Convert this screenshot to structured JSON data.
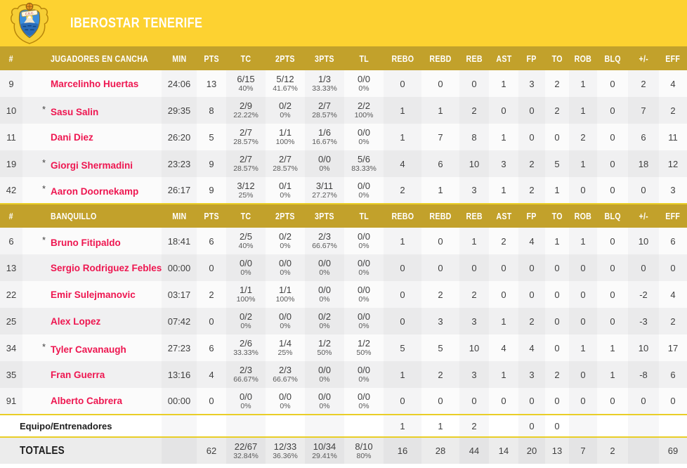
{
  "team": {
    "name": "IBEROSTAR TENERIFE"
  },
  "colors": {
    "banner_yellow": "#FDD231",
    "header_gold": "#C2A12B",
    "player_name_pink": "#EE1650",
    "separator_yellow": "#E9CE27",
    "text_ink": "#3F3F3F"
  },
  "logo": {
    "name": "cb-canarias-crest",
    "ribbon_text": "C.B.C."
  },
  "table": {
    "columns": [
      "#",
      "JUGADORES EN CANCHA",
      "MIN",
      "PTS",
      "TC",
      "2PTS",
      "3PTS",
      "TL",
      "REBO",
      "REBD",
      "REB",
      "AST",
      "FP",
      "TO",
      "ROB",
      "BLQ",
      "+/-",
      "EFF"
    ],
    "sections": [
      {
        "label": "JUGADORES EN CANCHA",
        "players": [
          {
            "num": "9",
            "starter": false,
            "name": "Marcelinho Huertas",
            "min": "24:06",
            "pts": "13",
            "tc": [
              "6/15",
              "40%"
            ],
            "p2": [
              "5/12",
              "41.67%"
            ],
            "p3": [
              "1/3",
              "33.33%"
            ],
            "tl": [
              "0/0",
              "0%"
            ],
            "rebo": "0",
            "rebd": "0",
            "reb": "0",
            "ast": "1",
            "fp": "3",
            "to": "2",
            "rob": "1",
            "blq": "0",
            "pm": "2",
            "eff": "4"
          },
          {
            "num": "10",
            "starter": true,
            "name": "Sasu Salin",
            "min": "29:35",
            "pts": "8",
            "tc": [
              "2/9",
              "22.22%"
            ],
            "p2": [
              "0/2",
              "0%"
            ],
            "p3": [
              "2/7",
              "28.57%"
            ],
            "tl": [
              "2/2",
              "100%"
            ],
            "rebo": "1",
            "rebd": "1",
            "reb": "2",
            "ast": "0",
            "fp": "0",
            "to": "2",
            "rob": "1",
            "blq": "0",
            "pm": "7",
            "eff": "2"
          },
          {
            "num": "11",
            "starter": false,
            "name": "Dani Diez",
            "min": "26:20",
            "pts": "5",
            "tc": [
              "2/7",
              "28.57%"
            ],
            "p2": [
              "1/1",
              "100%"
            ],
            "p3": [
              "1/6",
              "16.67%"
            ],
            "tl": [
              "0/0",
              "0%"
            ],
            "rebo": "1",
            "rebd": "7",
            "reb": "8",
            "ast": "1",
            "fp": "0",
            "to": "0",
            "rob": "2",
            "blq": "0",
            "pm": "6",
            "eff": "11"
          },
          {
            "num": "19",
            "starter": true,
            "name": "Giorgi Shermadini",
            "min": "23:23",
            "pts": "9",
            "tc": [
              "2/7",
              "28.57%"
            ],
            "p2": [
              "2/7",
              "28.57%"
            ],
            "p3": [
              "0/0",
              "0%"
            ],
            "tl": [
              "5/6",
              "83.33%"
            ],
            "rebo": "4",
            "rebd": "6",
            "reb": "10",
            "ast": "3",
            "fp": "2",
            "to": "5",
            "rob": "1",
            "blq": "0",
            "pm": "18",
            "eff": "12"
          },
          {
            "num": "42",
            "starter": true,
            "name": "Aaron Doornekamp",
            "min": "26:17",
            "pts": "9",
            "tc": [
              "3/12",
              "25%"
            ],
            "p2": [
              "0/1",
              "0%"
            ],
            "p3": [
              "3/11",
              "27.27%"
            ],
            "tl": [
              "0/0",
              "0%"
            ],
            "rebo": "2",
            "rebd": "1",
            "reb": "3",
            "ast": "1",
            "fp": "2",
            "to": "1",
            "rob": "0",
            "blq": "0",
            "pm": "0",
            "eff": "3"
          }
        ]
      },
      {
        "label": "BANQUILLO",
        "players": [
          {
            "num": "6",
            "starter": true,
            "name": "Bruno Fitipaldo",
            "min": "18:41",
            "pts": "6",
            "tc": [
              "2/5",
              "40%"
            ],
            "p2": [
              "0/2",
              "0%"
            ],
            "p3": [
              "2/3",
              "66.67%"
            ],
            "tl": [
              "0/0",
              "0%"
            ],
            "rebo": "1",
            "rebd": "0",
            "reb": "1",
            "ast": "2",
            "fp": "4",
            "to": "1",
            "rob": "1",
            "blq": "0",
            "pm": "10",
            "eff": "6"
          },
          {
            "num": "13",
            "starter": false,
            "name": "Sergio Rodriguez Febles",
            "min": "00:00",
            "pts": "0",
            "tc": [
              "0/0",
              "0%"
            ],
            "p2": [
              "0/0",
              "0%"
            ],
            "p3": [
              "0/0",
              "0%"
            ],
            "tl": [
              "0/0",
              "0%"
            ],
            "rebo": "0",
            "rebd": "0",
            "reb": "0",
            "ast": "0",
            "fp": "0",
            "to": "0",
            "rob": "0",
            "blq": "0",
            "pm": "0",
            "eff": "0"
          },
          {
            "num": "22",
            "starter": false,
            "name": "Emir Sulejmanovic",
            "min": "03:17",
            "pts": "2",
            "tc": [
              "1/1",
              "100%"
            ],
            "p2": [
              "1/1",
              "100%"
            ],
            "p3": [
              "0/0",
              "0%"
            ],
            "tl": [
              "0/0",
              "0%"
            ],
            "rebo": "0",
            "rebd": "2",
            "reb": "2",
            "ast": "0",
            "fp": "0",
            "to": "0",
            "rob": "0",
            "blq": "0",
            "pm": "-2",
            "eff": "4"
          },
          {
            "num": "25",
            "starter": false,
            "name": "Alex Lopez",
            "min": "07:42",
            "pts": "0",
            "tc": [
              "0/2",
              "0%"
            ],
            "p2": [
              "0/0",
              "0%"
            ],
            "p3": [
              "0/2",
              "0%"
            ],
            "tl": [
              "0/0",
              "0%"
            ],
            "rebo": "0",
            "rebd": "3",
            "reb": "3",
            "ast": "1",
            "fp": "2",
            "to": "0",
            "rob": "0",
            "blq": "0",
            "pm": "-3",
            "eff": "2"
          },
          {
            "num": "34",
            "starter": true,
            "name": "Tyler Cavanaugh",
            "min": "27:23",
            "pts": "6",
            "tc": [
              "2/6",
              "33.33%"
            ],
            "p2": [
              "1/4",
              "25%"
            ],
            "p3": [
              "1/2",
              "50%"
            ],
            "tl": [
              "1/2",
              "50%"
            ],
            "rebo": "5",
            "rebd": "5",
            "reb": "10",
            "ast": "4",
            "fp": "4",
            "to": "0",
            "rob": "1",
            "blq": "1",
            "pm": "10",
            "eff": "17"
          },
          {
            "num": "35",
            "starter": false,
            "name": "Fran Guerra",
            "min": "13:16",
            "pts": "4",
            "tc": [
              "2/3",
              "66.67%"
            ],
            "p2": [
              "2/3",
              "66.67%"
            ],
            "p3": [
              "0/0",
              "0%"
            ],
            "tl": [
              "0/0",
              "0%"
            ],
            "rebo": "1",
            "rebd": "2",
            "reb": "3",
            "ast": "1",
            "fp": "3",
            "to": "2",
            "rob": "0",
            "blq": "1",
            "pm": "-8",
            "eff": "6"
          },
          {
            "num": "91",
            "starter": false,
            "name": "Alberto Cabrera",
            "min": "00:00",
            "pts": "0",
            "tc": [
              "0/0",
              "0%"
            ],
            "p2": [
              "0/0",
              "0%"
            ],
            "p3": [
              "0/0",
              "0%"
            ],
            "tl": [
              "0/0",
              "0%"
            ],
            "rebo": "0",
            "rebd": "0",
            "reb": "0",
            "ast": "0",
            "fp": "0",
            "to": "0",
            "rob": "0",
            "blq": "0",
            "pm": "0",
            "eff": "0"
          }
        ]
      }
    ],
    "team_row": {
      "label": "Equipo/Entrenadores",
      "min": "",
      "pts": "",
      "tc": "",
      "p2": "",
      "p3": "",
      "tl": "",
      "rebo": "1",
      "rebd": "1",
      "reb": "2",
      "ast": "",
      "fp": "0",
      "to": "0",
      "rob": "",
      "blq": "",
      "pm": "",
      "eff": ""
    },
    "totals_row": {
      "label": "TOTALES",
      "min": "",
      "pts": "62",
      "tc": [
        "22/67",
        "32.84%"
      ],
      "p2": [
        "12/33",
        "36.36%"
      ],
      "p3": [
        "10/34",
        "29.41%"
      ],
      "tl": [
        "8/10",
        "80%"
      ],
      "rebo": "16",
      "rebd": "28",
      "reb": "44",
      "ast": "14",
      "fp": "20",
      "to": "13",
      "rob": "7",
      "blq": "2",
      "pm": "",
      "eff": "69"
    }
  }
}
